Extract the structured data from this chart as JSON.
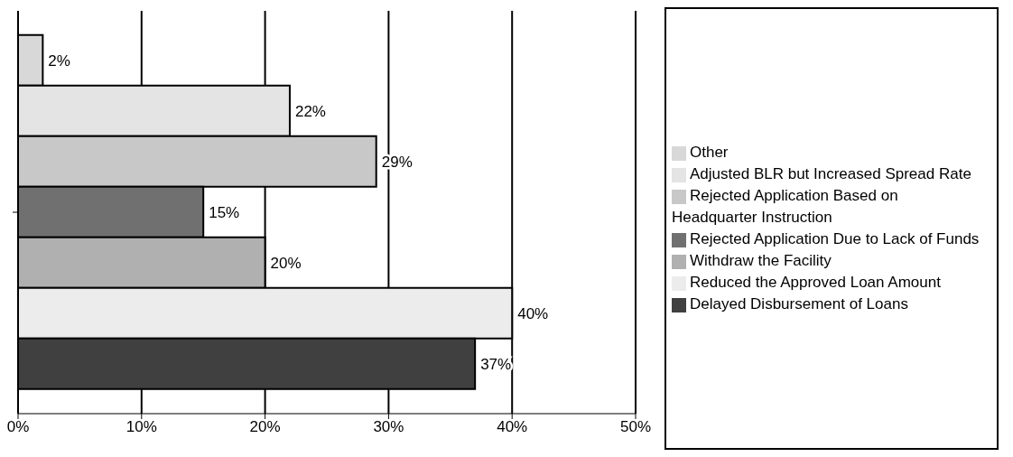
{
  "chart_data": {
    "type": "bar",
    "orientation": "horizontal",
    "categories": [
      null
    ],
    "series": [
      {
        "name": "Other",
        "color": "#d8d8d8",
        "values": [
          2
        ],
        "value_labels": [
          "2%"
        ]
      },
      {
        "name": "Adjusted BLR but Increased Spread Rate",
        "color": "#e4e4e4",
        "values": [
          22
        ],
        "value_labels": [
          "22%"
        ]
      },
      {
        "name": "Rejected Application Based on Headquarter Instruction",
        "color": "#c8c8c8",
        "values": [
          29
        ],
        "value_labels": [
          "29%"
        ]
      },
      {
        "name": "Rejected Application Due to Lack of Funds",
        "color": "#707070",
        "values": [
          15
        ],
        "value_labels": [
          "15%"
        ]
      },
      {
        "name": "Withdraw the Facility",
        "color": "#b0b0b0",
        "values": [
          20
        ],
        "value_labels": [
          "20%"
        ]
      },
      {
        "name": "Reduced the Approved Loan Amount",
        "color": "#ececec",
        "values": [
          40
        ],
        "value_labels": [
          "40%"
        ]
      },
      {
        "name": "Delayed Disbursement of Loans",
        "color": "#404040",
        "values": [
          37
        ],
        "value_labels": [
          "37%"
        ]
      }
    ],
    "xlim": [
      0,
      50
    ],
    "xticks": [
      {
        "value": 0,
        "label": "0%"
      },
      {
        "value": 10,
        "label": "10%"
      },
      {
        "value": 20,
        "label": "20%"
      },
      {
        "value": 30,
        "label": "30%"
      },
      {
        "value": 40,
        "label": "40%"
      },
      {
        "value": 50,
        "label": "50%"
      }
    ],
    "grid": "x",
    "legend": "right"
  }
}
